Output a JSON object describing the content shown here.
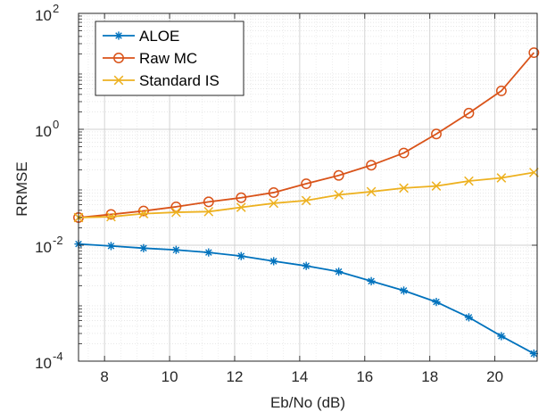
{
  "chart_data": {
    "type": "line",
    "xlabel": "Eb/No (dB)",
    "ylabel": "RRMSE",
    "xlim": [
      7.2,
      21.3
    ],
    "ylim": [
      0.0001,
      100
    ],
    "yscale": "log",
    "grid": true,
    "minor_grid": true,
    "legend_position": "top-left",
    "x_ticks": [
      8,
      10,
      12,
      14,
      16,
      18,
      20
    ],
    "x_tick_labels": [
      "8",
      "10",
      "12",
      "14",
      "16",
      "18",
      "20"
    ],
    "y_ticks": [
      0.0001,
      0.01,
      1,
      100
    ],
    "y_tick_labels": [
      {
        "base": "10",
        "exp": "-4"
      },
      {
        "base": "10",
        "exp": "-2"
      },
      {
        "base": "10",
        "exp": "0"
      },
      {
        "base": "10",
        "exp": "2"
      }
    ],
    "x": [
      7.2,
      8.2,
      9.2,
      10.2,
      11.2,
      12.2,
      13.2,
      14.2,
      15.2,
      16.2,
      17.2,
      18.2,
      19.2,
      20.2,
      21.2
    ],
    "series": [
      {
        "name": "ALOE",
        "color": "#0072BD",
        "marker": "asterisk",
        "values": [
          0.0105,
          0.0097,
          0.0089,
          0.0083,
          0.0075,
          0.0065,
          0.0053,
          0.0044,
          0.0035,
          0.0024,
          0.00165,
          0.00105,
          0.00057,
          0.00027,
          0.000135
        ]
      },
      {
        "name": "Raw MC",
        "color": "#D95319",
        "marker": "circle",
        "values": [
          0.03,
          0.034,
          0.039,
          0.046,
          0.056,
          0.066,
          0.081,
          0.115,
          0.16,
          0.24,
          0.39,
          0.83,
          1.9,
          4.6,
          21
        ]
      },
      {
        "name": "Standard IS",
        "color": "#EDB120",
        "marker": "x",
        "values": [
          0.03,
          0.031,
          0.035,
          0.037,
          0.038,
          0.045,
          0.053,
          0.059,
          0.074,
          0.084,
          0.097,
          0.105,
          0.128,
          0.145,
          0.18
        ]
      }
    ]
  }
}
